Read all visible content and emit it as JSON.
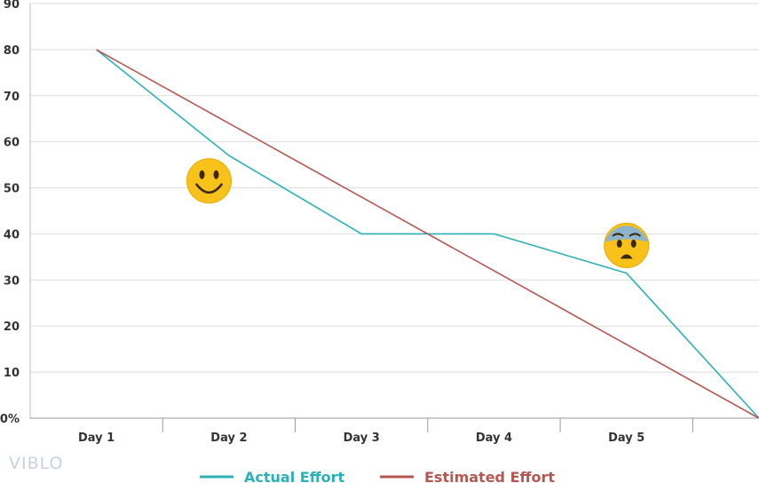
{
  "chart_data": {
    "type": "line",
    "categories": [
      "Day 1",
      "Day 2",
      "Day 3",
      "Day 4",
      "Day 5"
    ],
    "x_positions": [
      0.5,
      1.5,
      2.5,
      3.5,
      4.5
    ],
    "x_range": [
      0,
      5.5
    ],
    "ylim": [
      0,
      90
    ],
    "y_ticks": [
      "0%",
      "10",
      "20",
      "30",
      "40",
      "50",
      "60",
      "70",
      "80",
      "90"
    ],
    "grid": true,
    "legend_position": "bottom",
    "series": [
      {
        "name": "Actual Effort",
        "color": "#2ab0b8",
        "x": [
          0.5,
          1.5,
          2.5,
          3.5,
          4.5,
          5.5
        ],
        "values": [
          80,
          57,
          40,
          40,
          31.5,
          0
        ]
      },
      {
        "name": "Estimated Effort",
        "color": "#b55750",
        "x": [
          0.5,
          5.5
        ],
        "values": [
          80,
          0
        ]
      }
    ],
    "annotations": [
      {
        "icon": "smiley-face-icon",
        "x": 1.35,
        "y": 51.5
      },
      {
        "icon": "anxious-face-icon",
        "x": 4.5,
        "y": 37.5
      }
    ]
  },
  "watermark": "VIBLO"
}
